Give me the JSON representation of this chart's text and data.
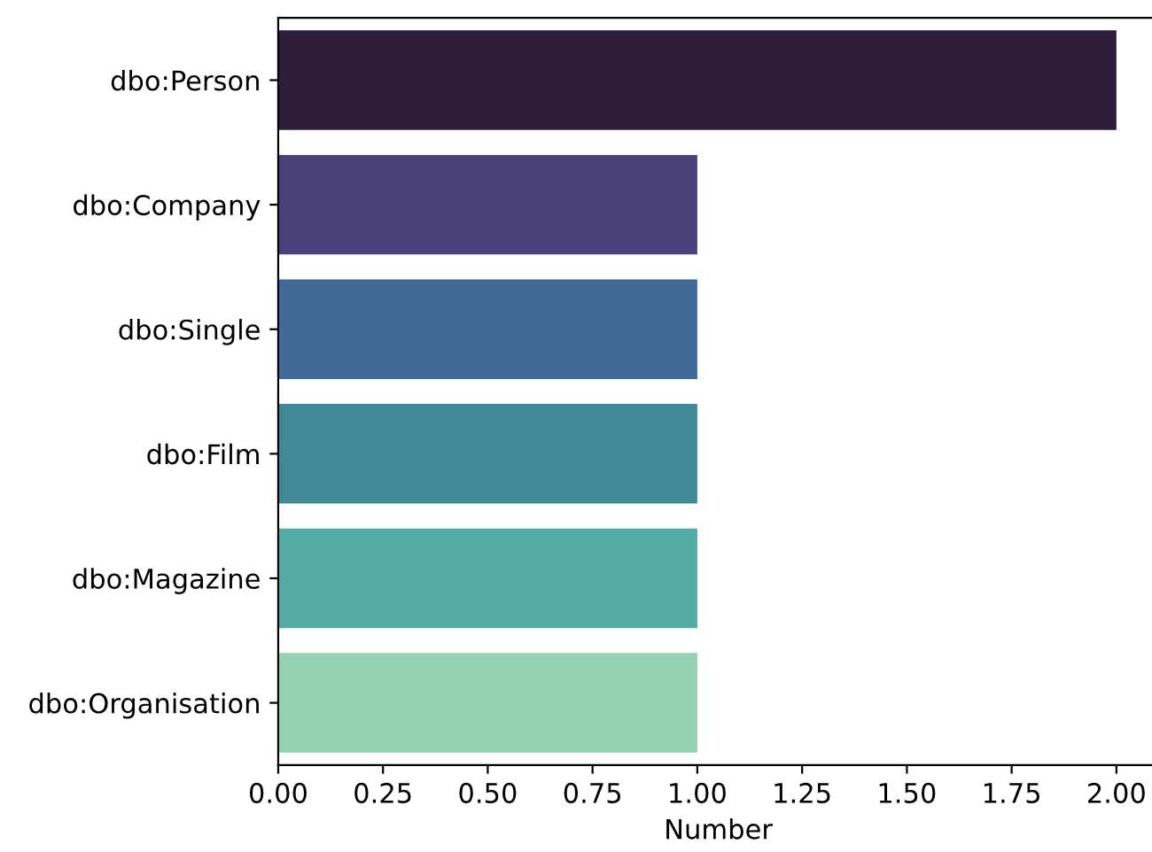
{
  "chart_data": {
    "type": "bar",
    "orientation": "horizontal",
    "xlabel": "Number",
    "categories": [
      "dbo:Person",
      "dbo:Company",
      "dbo:Single",
      "dbo:Film",
      "dbo:Magazine",
      "dbo:Organisation"
    ],
    "values": [
      2,
      1,
      1,
      1,
      1,
      1
    ],
    "colors": [
      "#2e1e3b",
      "#4a417a",
      "#426a98",
      "#408a98",
      "#52aba5",
      "#95d1b3"
    ],
    "xlim": [
      0,
      2.1
    ],
    "xticks": [
      {
        "value": 0,
        "label": "0.00"
      },
      {
        "value": 0.25,
        "label": "0.25"
      },
      {
        "value": 0.5,
        "label": "0.50"
      },
      {
        "value": 0.75,
        "label": "0.75"
      },
      {
        "value": 1,
        "label": "1.00"
      },
      {
        "value": 1.25,
        "label": "1.25"
      },
      {
        "value": 1.5,
        "label": "1.50"
      },
      {
        "value": 1.75,
        "label": "1.75"
      },
      {
        "value": 2,
        "label": "2.00"
      }
    ],
    "grid": false
  }
}
